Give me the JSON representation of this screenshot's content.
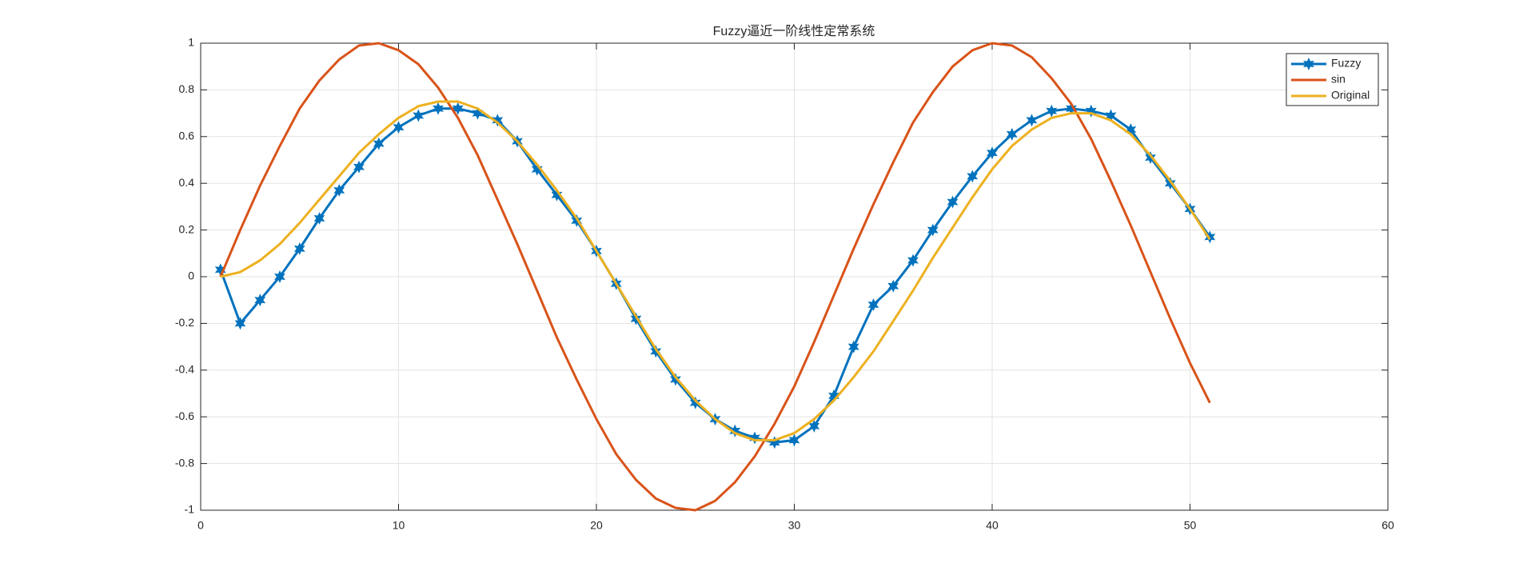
{
  "chart_data": {
    "type": "line",
    "title": "Fuzzy逼近一阶线性定常系统",
    "x": [
      1,
      2,
      3,
      4,
      5,
      6,
      7,
      8,
      9,
      10,
      11,
      12,
      13,
      14,
      15,
      16,
      17,
      18,
      19,
      20,
      21,
      22,
      23,
      24,
      25,
      26,
      27,
      28,
      29,
      30,
      31,
      32,
      33,
      34,
      35,
      36,
      37,
      38,
      39,
      40,
      41,
      42,
      43,
      44,
      45,
      46,
      47,
      48,
      49,
      50,
      51
    ],
    "series": [
      {
        "name": "Fuzzy",
        "color": "#0072BD",
        "marker": "hexagram",
        "values": [
          0.03,
          -0.2,
          -0.1,
          0.0,
          0.12,
          0.25,
          0.37,
          0.47,
          0.57,
          0.64,
          0.69,
          0.72,
          0.72,
          0.7,
          0.67,
          0.58,
          0.46,
          0.35,
          0.24,
          0.11,
          -0.03,
          -0.18,
          -0.32,
          -0.44,
          -0.54,
          -0.61,
          -0.66,
          -0.69,
          -0.71,
          -0.7,
          -0.64,
          -0.51,
          -0.3,
          -0.12,
          -0.04,
          0.07,
          0.2,
          0.32,
          0.43,
          0.53,
          0.61,
          0.67,
          0.71,
          0.72,
          0.71,
          0.69,
          0.63,
          0.51,
          0.4,
          0.29,
          0.17
        ]
      },
      {
        "name": "sin",
        "color": "#D95319",
        "values": [
          0,
          0.2,
          0.39,
          0.56,
          0.72,
          0.84,
          0.93,
          0.99,
          1.0,
          0.97,
          0.91,
          0.81,
          0.68,
          0.52,
          0.33,
          0.14,
          -0.06,
          -0.26,
          -0.44,
          -0.61,
          -0.76,
          -0.87,
          -0.95,
          -0.99,
          -1.0,
          -0.96,
          -0.88,
          -0.77,
          -0.63,
          -0.47,
          -0.28,
          -0.08,
          0.12,
          0.31,
          0.49,
          0.66,
          0.79,
          0.9,
          0.97,
          1.0,
          0.99,
          0.94,
          0.85,
          0.74,
          0.59,
          0.41,
          0.22,
          0.02,
          -0.18,
          -0.37,
          -0.54
        ]
      },
      {
        "name": "Original",
        "color": "#EDB120",
        "values": [
          0,
          0.02,
          0.07,
          0.14,
          0.23,
          0.33,
          0.43,
          0.53,
          0.61,
          0.68,
          0.73,
          0.75,
          0.75,
          0.72,
          0.66,
          0.58,
          0.48,
          0.37,
          0.25,
          0.11,
          -0.03,
          -0.17,
          -0.31,
          -0.43,
          -0.53,
          -0.61,
          -0.67,
          -0.7,
          -0.7,
          -0.67,
          -0.61,
          -0.53,
          -0.43,
          -0.32,
          -0.19,
          -0.06,
          0.08,
          0.21,
          0.34,
          0.46,
          0.56,
          0.63,
          0.68,
          0.7,
          0.7,
          0.67,
          0.61,
          0.52,
          0.41,
          0.29,
          0.16
        ]
      }
    ],
    "xlim": [
      0,
      60
    ],
    "xticks": [
      0,
      10,
      20,
      30,
      40,
      50,
      60
    ],
    "ylim": [
      -1,
      1
    ],
    "yticks": [
      -1,
      -0.8,
      -0.6,
      -0.4,
      -0.2,
      0,
      0.2,
      0.4,
      0.6,
      0.8,
      1
    ],
    "grid": true,
    "legend": "northeast"
  }
}
